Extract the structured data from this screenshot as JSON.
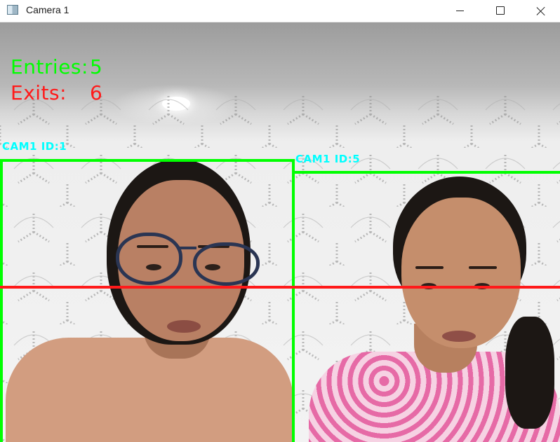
{
  "window": {
    "title": "Camera 1",
    "minimize_label": "",
    "maximize_label": "",
    "close_label": ""
  },
  "counters": {
    "entries_label": "Entries:",
    "entries_value": "5",
    "exits_label": "Exits:",
    "exits_value": "6"
  },
  "detections": [
    {
      "label": "CAM1 ID:1"
    },
    {
      "label": "CAM1 ID:5"
    }
  ],
  "colors": {
    "box": "#00ff00",
    "label": "#00ffff",
    "entries": "#00ff00",
    "exits": "#ff1a1a",
    "line": "#ff1a1a"
  }
}
